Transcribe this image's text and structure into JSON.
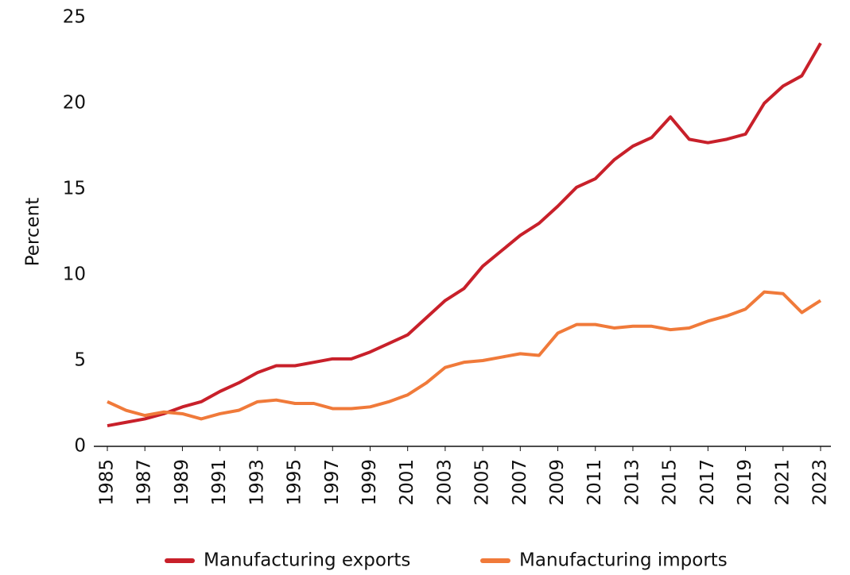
{
  "chart_data": {
    "type": "line",
    "y_label": "Percent",
    "x": [
      1985,
      1986,
      1987,
      1988,
      1989,
      1990,
      1991,
      1992,
      1993,
      1994,
      1995,
      1996,
      1997,
      1998,
      1999,
      2000,
      2001,
      2002,
      2003,
      2004,
      2005,
      2006,
      2007,
      2008,
      2009,
      2010,
      2011,
      2012,
      2013,
      2014,
      2015,
      2016,
      2017,
      2018,
      2019,
      2020,
      2021,
      2022,
      2023
    ],
    "series": [
      {
        "name": "Manufacturing exports",
        "color": "#c8202a",
        "values": [
          1.2,
          1.4,
          1.6,
          1.9,
          2.3,
          2.6,
          3.2,
          3.7,
          4.3,
          4.7,
          4.7,
          4.9,
          5.1,
          5.1,
          5.5,
          6.0,
          6.5,
          7.5,
          8.5,
          9.2,
          10.5,
          11.4,
          12.3,
          13.0,
          14.0,
          15.1,
          15.6,
          16.7,
          17.5,
          18.0,
          19.2,
          17.9,
          17.7,
          17.9,
          18.2,
          20.0,
          21.0,
          21.6,
          23.5
        ]
      },
      {
        "name": "Manufacturing imports",
        "color": "#f07a3a",
        "values": [
          2.6,
          2.1,
          1.8,
          2.0,
          1.9,
          1.6,
          1.9,
          2.1,
          2.6,
          2.7,
          2.5,
          2.5,
          2.2,
          2.2,
          2.3,
          2.6,
          3.0,
          3.7,
          4.6,
          4.9,
          5.0,
          5.2,
          5.4,
          5.3,
          6.6,
          7.1,
          7.1,
          6.9,
          7.0,
          7.0,
          6.8,
          6.9,
          7.3,
          7.6,
          8.0,
          9.0,
          8.9,
          7.8,
          8.5
        ]
      }
    ],
    "xlim": [
      1985,
      2023
    ],
    "xticks": [
      1985,
      1987,
      1989,
      1991,
      1993,
      1995,
      1997,
      1999,
      2001,
      2003,
      2005,
      2007,
      2009,
      2011,
      2013,
      2015,
      2017,
      2019,
      2021,
      2023
    ],
    "ylim": [
      0,
      25
    ],
    "yticks": [
      0,
      5,
      10,
      15,
      20,
      25
    ],
    "grid": false,
    "legend": "bottom"
  }
}
